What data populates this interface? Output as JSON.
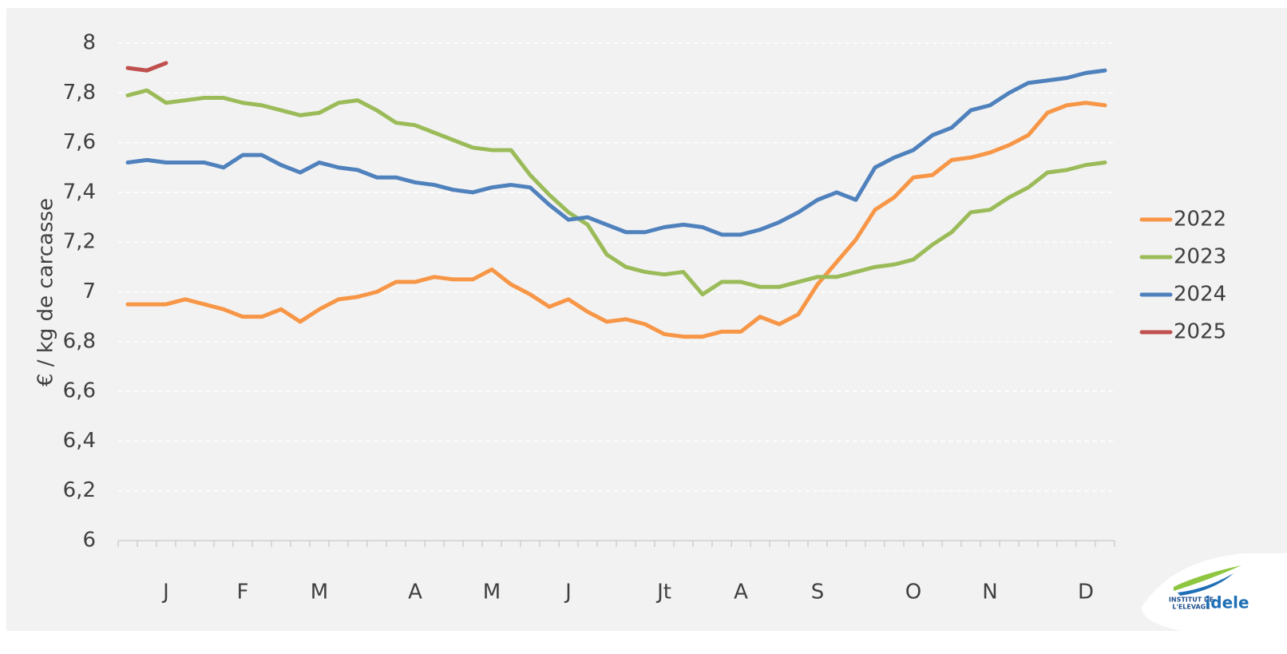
{
  "chart_data": {
    "type": "line",
    "y_label": "€ / kg de carcasse",
    "categories": [
      null,
      null,
      "J",
      null,
      null,
      null,
      "F",
      null,
      null,
      null,
      "M",
      null,
      null,
      null,
      null,
      "A",
      null,
      null,
      null,
      "M",
      null,
      null,
      null,
      "J",
      null,
      null,
      null,
      null,
      "Jt",
      null,
      null,
      null,
      "A",
      null,
      null,
      null,
      "S",
      null,
      null,
      null,
      null,
      "O",
      null,
      null,
      null,
      "N",
      null,
      null,
      null,
      null,
      "D",
      null
    ],
    "series": [
      {
        "name": "2022",
        "color": "#f79646",
        "values": [
          6.95,
          6.95,
          6.95,
          6.97,
          6.95,
          6.93,
          6.9,
          6.9,
          6.93,
          6.88,
          6.93,
          6.97,
          6.98,
          7.0,
          7.04,
          7.04,
          7.06,
          7.05,
          7.05,
          7.09,
          7.03,
          6.99,
          6.94,
          6.97,
          6.92,
          6.88,
          6.89,
          6.87,
          6.83,
          6.82,
          6.82,
          6.84,
          6.84,
          6.9,
          6.87,
          6.91,
          7.03,
          7.12,
          7.21,
          7.33,
          7.38,
          7.46,
          7.47,
          7.53,
          7.54,
          7.56,
          7.59,
          7.63,
          7.72,
          7.75,
          7.76,
          7.75
        ]
      },
      {
        "name": "2023",
        "color": "#9bbb59",
        "values": [
          7.79,
          7.81,
          7.76,
          7.77,
          7.78,
          7.78,
          7.76,
          7.75,
          7.73,
          7.71,
          7.72,
          7.76,
          7.77,
          7.73,
          7.68,
          7.67,
          7.64,
          7.61,
          7.58,
          7.57,
          7.57,
          7.47,
          7.39,
          7.32,
          7.27,
          7.15,
          7.1,
          7.08,
          7.07,
          7.08,
          6.99,
          7.04,
          7.04,
          7.02,
          7.02,
          7.04,
          7.06,
          7.06,
          7.08,
          7.1,
          7.11,
          7.13,
          7.19,
          7.24,
          7.32,
          7.33,
          7.38,
          7.42,
          7.48,
          7.49,
          7.51,
          7.52
        ]
      },
      {
        "name": "2024",
        "color": "#4f81bd",
        "values": [
          7.52,
          7.53,
          7.52,
          7.52,
          7.52,
          7.5,
          7.55,
          7.55,
          7.51,
          7.48,
          7.52,
          7.5,
          7.49,
          7.46,
          7.46,
          7.44,
          7.43,
          7.41,
          7.4,
          7.42,
          7.43,
          7.42,
          7.35,
          7.29,
          7.3,
          7.27,
          7.24,
          7.24,
          7.26,
          7.27,
          7.26,
          7.23,
          7.23,
          7.25,
          7.28,
          7.32,
          7.37,
          7.4,
          7.37,
          7.5,
          7.54,
          7.57,
          7.63,
          7.66,
          7.73,
          7.75,
          7.8,
          7.84,
          7.85,
          7.86,
          7.88,
          7.89
        ]
      },
      {
        "name": "2025",
        "color": "#c0504d",
        "values": [
          7.9,
          7.89,
          7.92,
          null,
          null,
          null,
          null,
          null,
          null,
          null,
          null,
          null,
          null,
          null,
          null,
          null,
          null,
          null,
          null,
          null,
          null,
          null,
          null,
          null,
          null,
          null,
          null,
          null,
          null,
          null,
          null,
          null,
          null,
          null,
          null,
          null,
          null,
          null,
          null,
          null,
          null,
          null,
          null,
          null,
          null,
          null,
          null,
          null,
          null,
          null,
          null,
          null
        ]
      }
    ],
    "ylim": [
      6,
      8
    ],
    "yticks": [
      6,
      {
        "value": 6.2,
        "label": "6,2"
      },
      {
        "value": 6.4,
        "label": "6,4"
      },
      {
        "value": 6.6,
        "label": "6,6"
      },
      {
        "value": 6.8,
        "label": "6,8"
      },
      7,
      {
        "value": 7.2,
        "label": "7,2"
      },
      {
        "value": 7.4,
        "label": "7,4"
      },
      {
        "value": 7.6,
        "label": "7,6"
      },
      {
        "value": 7.8,
        "label": "7,8"
      },
      8
    ],
    "grid": true,
    "legend": "right"
  },
  "logo": {
    "line1": "INSTITUT DE",
    "line2": "L'ELEVAGE",
    "brand": "idele"
  }
}
